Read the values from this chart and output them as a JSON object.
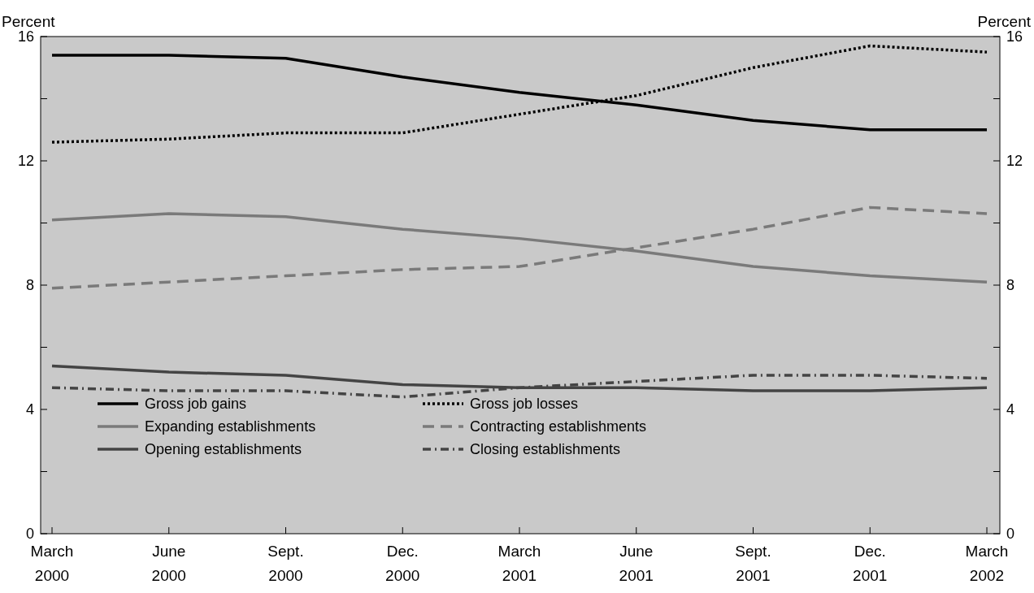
{
  "chart_data": {
    "type": "line",
    "ylabel": "Percent",
    "y2label": "Percent",
    "categories": [
      "March 2000",
      "June 2000",
      "Sept. 2000",
      "Dec. 2000",
      "March 2001",
      "June 2001",
      "Sept. 2001",
      "Dec. 2001",
      "March 2002"
    ],
    "ylim": [
      0,
      16
    ],
    "yticks": [
      0,
      {
        "value": 2,
        "label": null
      },
      4,
      {
        "value": 6,
        "label": null
      },
      8,
      {
        "value": 10,
        "label": null
      },
      12,
      {
        "value": 14,
        "label": null
      },
      16
    ],
    "y2lim": [
      0,
      16
    ],
    "y2ticks": [
      0,
      {
        "value": 2,
        "label": null
      },
      4,
      {
        "value": 6,
        "label": null
      },
      8,
      {
        "value": 10,
        "label": null
      },
      12,
      {
        "value": 14,
        "label": null
      },
      16
    ],
    "legend": "bottom left",
    "grid": false,
    "series": [
      {
        "name": "Gross job gains",
        "color": "#000000",
        "line_style": "solid",
        "values": [
          15.4,
          15.4,
          15.3,
          14.7,
          14.2,
          13.8,
          13.3,
          13.0,
          13.0
        ]
      },
      {
        "name": "Expanding establishments",
        "color": "#7a7a7a",
        "line_style": "solid",
        "values": [
          10.1,
          10.3,
          10.2,
          9.8,
          9.5,
          9.1,
          8.6,
          8.3,
          8.1
        ]
      },
      {
        "name": "Opening establishments",
        "color": "#444444",
        "line_style": "solid",
        "values": [
          5.4,
          5.2,
          5.1,
          4.8,
          4.7,
          4.7,
          4.6,
          4.6,
          4.7
        ]
      },
      {
        "name": "Gross job losses",
        "color": "#000000",
        "line_style": "dotted",
        "values": [
          12.6,
          12.7,
          12.9,
          12.9,
          13.5,
          14.1,
          15.0,
          15.7,
          15.5
        ]
      },
      {
        "name": "Contracting establishments",
        "color": "#7a7a7a",
        "line_style": "dashed",
        "values": [
          7.9,
          8.1,
          8.3,
          8.5,
          8.6,
          9.2,
          9.8,
          10.5,
          10.3
        ]
      },
      {
        "name": "Closing establishments",
        "color": "#444444",
        "line_style": "dashdot",
        "values": [
          4.7,
          4.6,
          4.6,
          4.4,
          4.7,
          4.9,
          5.1,
          5.1,
          5.0
        ]
      }
    ]
  }
}
